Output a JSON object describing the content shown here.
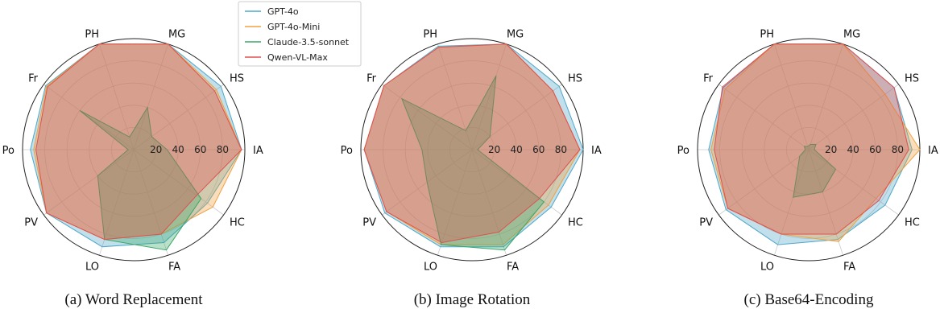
{
  "legend": [
    {
      "name": "GPT-4o",
      "color": "#4fa7c9"
    },
    {
      "name": "GPT-4o-Mini",
      "color": "#f0a040"
    },
    {
      "name": "Claude-3.5-sonnet",
      "color": "#3aa668"
    },
    {
      "name": "Qwen-VL-Max",
      "color": "#e05050"
    }
  ],
  "chart_data": [
    {
      "type": "radar",
      "caption": "(a) Word Replacement",
      "categories": [
        "IA",
        "HS",
        "MG",
        "PH",
        "Fr",
        "Po",
        "PV",
        "LO",
        "FA",
        "HC"
      ],
      "radial_ticks": [
        "20",
        "40",
        "60",
        "80"
      ],
      "rlim": [
        0,
        100
      ],
      "series": [
        {
          "name": "GPT-4o",
          "values": [
            97,
            97,
            100,
            100,
            98,
            93,
            97,
            92,
            88,
            82
          ]
        },
        {
          "name": "GPT-4o-Mini",
          "values": [
            97,
            92,
            100,
            100,
            97,
            90,
            97,
            85,
            80,
            88
          ]
        },
        {
          "name": "Claude-3.5-sonnet",
          "values": [
            30,
            20,
            40,
            12,
            60,
            5,
            40,
            85,
            95,
            75
          ]
        },
        {
          "name": "Qwen-VL-Max",
          "values": [
            97,
            90,
            100,
            100,
            96,
            88,
            97,
            85,
            80,
            70
          ]
        }
      ]
    },
    {
      "type": "radar",
      "caption": "(b) Image Rotation",
      "categories": [
        "IA",
        "HS",
        "MG",
        "PH",
        "Fr",
        "Po",
        "PV",
        "LO",
        "FA",
        "HC"
      ],
      "radial_ticks": [
        "20",
        "40",
        "60",
        "80"
      ],
      "rlim": [
        0,
        100
      ],
      "series": [
        {
          "name": "GPT-4o",
          "values": [
            100,
            97,
            100,
            98,
            98,
            97,
            97,
            92,
            92,
            88
          ]
        },
        {
          "name": "GPT-4o-Mini",
          "values": [
            97,
            90,
            100,
            97,
            98,
            97,
            95,
            90,
            90,
            85
          ]
        },
        {
          "name": "Claude-3.5-sonnet",
          "values": [
            5,
            20,
            70,
            18,
            78,
            45,
            50,
            90,
            95,
            80
          ]
        },
        {
          "name": "Qwen-VL-Max",
          "values": [
            97,
            90,
            100,
            97,
            98,
            97,
            95,
            88,
            78,
            75
          ]
        }
      ]
    },
    {
      "type": "radar",
      "caption": "(c) Base64-Encoding",
      "categories": [
        "IA",
        "HS",
        "MG",
        "PH",
        "Fr",
        "Po",
        "PV",
        "LO",
        "FA",
        "HC"
      ],
      "radial_ticks": [
        "20",
        "40",
        "60",
        "80"
      ],
      "rlim": [
        0,
        100
      ],
      "series": [
        {
          "name": "GPT-4o",
          "values": [
            93,
            95,
            100,
            100,
            95,
            90,
            92,
            90,
            85,
            85
          ]
        },
        {
          "name": "GPT-4o-Mini",
          "values": [
            100,
            85,
            100,
            100,
            93,
            88,
            90,
            80,
            87,
            75
          ]
        },
        {
          "name": "Claude-3.5-sonnet",
          "values": [
            5,
            8,
            5,
            3,
            5,
            3,
            10,
            45,
            40,
            30
          ]
        },
        {
          "name": "Qwen-VL-Max",
          "values": [
            90,
            95,
            100,
            100,
            96,
            85,
            90,
            80,
            80,
            78
          ]
        }
      ]
    }
  ]
}
